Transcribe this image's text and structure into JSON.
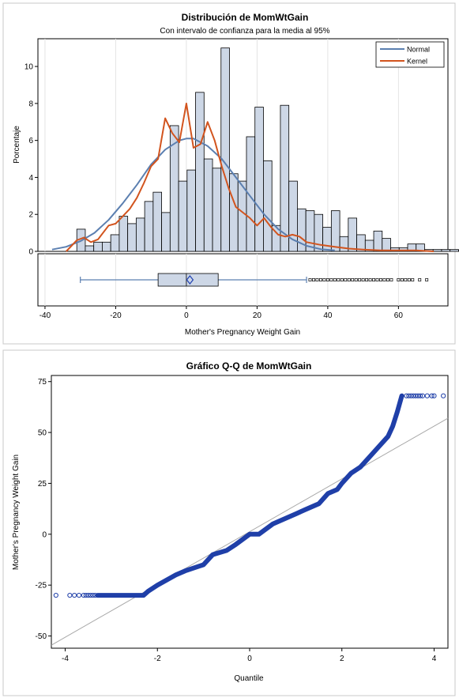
{
  "chart_data": [
    {
      "type": "bar",
      "title": "Distribución de MomWtGain",
      "subtitle": "Con intervalo de confianza para la media al 95%",
      "xlabel": "Mother's Pregnancy Weight Gain",
      "ylabel": "Porcentaje",
      "xlim": [
        -42,
        74
      ],
      "ylim": [
        0,
        11.5
      ],
      "xticks": [
        -40,
        -20,
        0,
        20,
        40,
        60
      ],
      "yticks": [
        0,
        2,
        4,
        6,
        8,
        10
      ],
      "grid": "vertical",
      "legend": "top-right",
      "bin_width": 2.4,
      "bin_start": -31,
      "values": [
        1.2,
        0.3,
        0.5,
        0.5,
        0.9,
        1.9,
        1.5,
        1.8,
        2.7,
        3.2,
        2.1,
        6.8,
        3.8,
        4.4,
        8.6,
        5.0,
        4.5,
        11.0,
        4.2,
        3.8,
        6.2,
        7.8,
        4.9,
        1.4,
        7.9,
        3.8,
        2.3,
        2.2,
        2.0,
        1.3,
        2.2,
        0.8,
        1.8,
        0.9,
        0.6,
        1.1,
        0.7,
        0.2,
        0.2,
        0.4,
        0.4,
        0.1,
        0.1,
        0.1,
        0.1,
        0.05,
        0.05,
        0.05,
        0.05,
        0.05,
        0.05,
        0.05,
        0.05
      ],
      "series": [
        {
          "name": "Normal",
          "color": "#5b7fb0",
          "x": [
            -38,
            -34,
            -30,
            -26,
            -22,
            -18,
            -14,
            -10,
            -6,
            -2,
            0,
            2,
            6,
            10,
            14,
            18,
            22,
            26,
            30,
            34,
            38,
            42
          ],
          "y": [
            0.1,
            0.25,
            0.55,
            1.0,
            1.7,
            2.6,
            3.6,
            4.7,
            5.5,
            6.0,
            6.1,
            6.1,
            5.7,
            5.0,
            4.0,
            3.0,
            2.0,
            1.2,
            0.65,
            0.3,
            0.12,
            0.05
          ]
        },
        {
          "name": "Kernel",
          "color": "#d2541e",
          "x": [
            -34,
            -31,
            -29,
            -27,
            -25,
            -22,
            -20,
            -18,
            -16,
            -14,
            -12,
            -10,
            -8,
            -6,
            -4,
            -2,
            0,
            2,
            4,
            6,
            8,
            10,
            12,
            14,
            16,
            18,
            20,
            22,
            24,
            26,
            28,
            30,
            32,
            34,
            38,
            42,
            46,
            50,
            55,
            60,
            65,
            70
          ],
          "y": [
            0,
            0.6,
            0.75,
            0.5,
            0.65,
            1.4,
            1.5,
            1.9,
            2.3,
            2.9,
            3.7,
            4.6,
            5.0,
            7.2,
            6.4,
            5.9,
            8.0,
            5.6,
            5.8,
            7.0,
            6.0,
            4.6,
            3.4,
            2.4,
            2.1,
            1.8,
            1.4,
            1.8,
            1.3,
            0.9,
            0.8,
            0.9,
            0.8,
            0.5,
            0.35,
            0.25,
            0.15,
            0.1,
            0.05,
            0.05,
            0.05,
            0
          ]
        }
      ],
      "boxplot": {
        "whisker_low": -30,
        "q1": -8,
        "median": 0,
        "q3": 9,
        "whisker_high": 34,
        "mean": 1,
        "outliers": [
          35,
          36,
          37,
          38,
          39,
          40,
          41,
          42,
          43,
          44,
          45,
          46,
          47,
          48,
          49,
          50,
          51,
          52,
          53,
          54,
          55,
          56,
          57,
          58,
          60,
          61,
          62,
          63,
          64,
          66,
          68
        ]
      }
    },
    {
      "type": "scatter",
      "title": "Gráfico Q-Q de MomWtGain",
      "xlabel": "Quantile",
      "ylabel": "Mother's Pregnancy Weight Gain",
      "xlim": [
        -4.3,
        4.3
      ],
      "ylim": [
        -56,
        78
      ],
      "xticks": [
        -4,
        -2,
        0,
        2,
        4
      ],
      "yticks": [
        -50,
        -25,
        0,
        25,
        50,
        75
      ],
      "reference_line": {
        "x": [
          -4.3,
          4.3
        ],
        "y": [
          -54.5,
          57
        ]
      },
      "low_tail": {
        "x": [
          -4.2,
          -3.9,
          -3.8,
          -3.7,
          -3.6,
          -3.55,
          -3.5,
          -3.45,
          -3.4,
          -3.35
        ],
        "y": -30
      },
      "high_tail": {
        "x": [
          3.4,
          3.45,
          3.5,
          3.55,
          3.6,
          3.65,
          3.7,
          3.75,
          3.85,
          3.95,
          4.0,
          4.2
        ],
        "y": 68
      },
      "curve": {
        "x": [
          -3.3,
          -2.3,
          -2.2,
          -2.0,
          -1.6,
          -1.4,
          -1.0,
          -0.8,
          -0.5,
          -0.3,
          0.0,
          0.2,
          0.5,
          0.7,
          1.0,
          1.2,
          1.5,
          1.7,
          1.9,
          2.0,
          2.2,
          2.4,
          2.6,
          2.8,
          3.0,
          3.1,
          3.2,
          3.3
        ],
        "y": [
          -30,
          -30,
          -28,
          -25,
          -20,
          -18,
          -15,
          -10,
          -8,
          -5,
          0,
          0,
          5,
          7,
          10,
          12,
          15,
          20,
          22,
          25,
          30,
          33,
          38,
          43,
          48,
          53,
          60,
          68
        ]
      }
    }
  ]
}
